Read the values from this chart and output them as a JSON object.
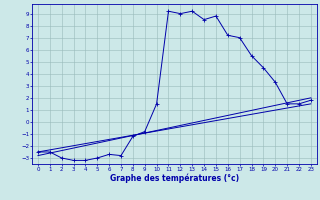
{
  "xlabel": "Graphe des températures (°c)",
  "xlim": [
    -0.5,
    23.5
  ],
  "ylim": [
    -3.5,
    9.8
  ],
  "xticks": [
    0,
    1,
    2,
    3,
    4,
    5,
    6,
    7,
    8,
    9,
    10,
    11,
    12,
    13,
    14,
    15,
    16,
    17,
    18,
    19,
    20,
    21,
    22,
    23
  ],
  "yticks": [
    -3,
    -2,
    -1,
    0,
    1,
    2,
    3,
    4,
    5,
    6,
    7,
    8,
    9
  ],
  "bg_color": "#cce8e8",
  "line_color": "#0000aa",
  "grid_color": "#99bbbb",
  "curve1_x": [
    0,
    1,
    2,
    3,
    4,
    5,
    6,
    7,
    8,
    9,
    10,
    11,
    12,
    13,
    14,
    15,
    16,
    17,
    18,
    19,
    20,
    21,
    22,
    23
  ],
  "curve1_y": [
    -2.5,
    -2.5,
    -3.0,
    -3.2,
    -3.2,
    -3.0,
    -2.7,
    -2.8,
    -1.2,
    -0.8,
    1.5,
    9.2,
    9.0,
    9.2,
    8.5,
    8.8,
    7.2,
    7.0,
    5.5,
    4.5,
    3.3,
    1.5,
    1.5,
    1.8
  ],
  "curve2_x": [
    0,
    23
  ],
  "curve2_y": [
    -2.5,
    1.5
  ],
  "curve3_x": [
    0,
    23
  ],
  "curve3_y": [
    -2.8,
    2.0
  ],
  "tick_fontsize": 4.0,
  "xlabel_fontsize": 5.5,
  "marker_size": 2.5,
  "linewidth": 0.7
}
